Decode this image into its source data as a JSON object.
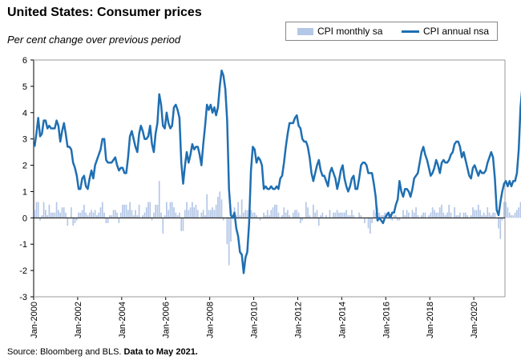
{
  "title": "United States: Consumer prices",
  "subtitle": "Per cent change over previous period",
  "source_text": "Source: Bloomberg and BLS.",
  "source_bold": "Data to May 2021.",
  "colors": {
    "monthly": "#b4c7e7",
    "annual": "#1f6fb2",
    "axis": "#000000"
  },
  "chart_data": {
    "type": "bar+line",
    "ylim": [
      -3,
      6
    ],
    "y_ticks": [
      "-3",
      "-2",
      "-1",
      "0",
      "1",
      "2",
      "3",
      "4",
      "5",
      "6"
    ],
    "x_start": "2000-01",
    "x_end": "2021-05",
    "x_ticks": [
      "Jan-2000",
      "Jan-2002",
      "Jan-2004",
      "Jan-2006",
      "Jan-2008",
      "Jan-2010",
      "Jan-2012",
      "Jan-2014",
      "Jan-2016",
      "Jan-2018",
      "Jan-2020"
    ],
    "legend_position": "top-right",
    "series": [
      {
        "name": "CPI monthly sa",
        "kind": "bar",
        "values": [
          0.3,
          0.6,
          0.6,
          -0.1,
          0.1,
          0.6,
          0.3,
          0.1,
          0.5,
          0.2,
          0.2,
          0.2,
          0.6,
          0.3,
          0.2,
          0.4,
          0.4,
          0.2,
          -0.3,
          0.0,
          0.4,
          -0.3,
          -0.2,
          -0.1,
          0.2,
          0.2,
          0.3,
          0.5,
          0.2,
          0.1,
          0.2,
          0.3,
          0.2,
          0.3,
          0.1,
          0.2,
          0.4,
          0.6,
          0.2,
          -0.2,
          -0.2,
          0.1,
          0.1,
          0.3,
          0.3,
          0.2,
          -0.2,
          0.2,
          0.5,
          0.5,
          0.5,
          0.3,
          0.6,
          0.3,
          0.1,
          0.3,
          0.1,
          0.5,
          0.0,
          0.1,
          0.2,
          0.4,
          0.6,
          0.6,
          -0.1,
          0.2,
          0.5,
          0.5,
          1.4,
          0.2,
          -0.6,
          0.1,
          0.6,
          0.3,
          0.6,
          0.6,
          0.4,
          0.2,
          0.1,
          0.2,
          -0.5,
          -0.5,
          0.3,
          0.6,
          0.3,
          0.4,
          0.6,
          0.4,
          0.5,
          0.3,
          0.0,
          0.2,
          0.3,
          0.1,
          0.9,
          0.3,
          0.3,
          0.4,
          0.3,
          0.5,
          0.8,
          1.0,
          0.7,
          -0.1,
          0.0,
          -1.0,
          -1.8,
          -0.9,
          0.0,
          0.4,
          0.1,
          0.6,
          0.1,
          0.7,
          0.2,
          0.3,
          0.3,
          0.3,
          0.3,
          0.2,
          0.2,
          0.1,
          0.0,
          -0.1,
          0.0,
          0.2,
          0.1,
          0.3,
          0.1,
          0.3,
          0.4,
          0.5,
          0.5,
          0.2,
          0.0,
          0.1,
          0.4,
          0.2,
          0.3,
          0.1,
          0.0,
          0.2,
          0.3,
          0.3,
          0.2,
          -0.2,
          -0.1,
          0.0,
          0.6,
          0.4,
          0.1,
          0.0,
          0.5,
          0.2,
          0.3,
          -0.3,
          0.1,
          0.2,
          0.0,
          0.1,
          0.0,
          0.3,
          0.0,
          0.2,
          0.2,
          0.3,
          0.2,
          0.2,
          0.2,
          0.2,
          0.3,
          0.1,
          0.1,
          0.3,
          0.1,
          0.0,
          0.0,
          0.2,
          0.1,
          0.0,
          -0.2,
          0.0,
          -0.4,
          -0.6,
          -0.2,
          0.3,
          0.2,
          0.4,
          0.2,
          0.1,
          0.1,
          0.2,
          0.2,
          0.1,
          0.1,
          -0.1,
          0.1,
          0.1,
          -0.1,
          -0.1,
          0.0,
          0.3,
          0.1,
          0.3,
          0.2,
          0.0,
          0.3,
          0.2,
          0.4,
          0.1,
          0.0,
          0.1,
          0.2,
          0.2,
          0.0,
          0.1,
          0.2,
          0.4,
          0.3,
          0.2,
          0.2,
          0.4,
          0.5,
          0.2,
          0.1,
          0.2,
          0.5,
          0.2,
          0.0,
          0.4,
          0.1,
          0.1,
          0.2,
          0.0,
          0.2,
          0.2,
          0.1,
          0.0,
          0.1,
          0.4,
          0.3,
          0.3,
          0.5,
          0.3,
          0.1,
          0.2,
          0.1,
          0.4,
          0.2,
          0.1,
          0.2,
          0.2,
          0.0,
          -0.4,
          -0.8,
          -0.1,
          0.6,
          0.6,
          0.4,
          0.2,
          0.1,
          0.1,
          0.2,
          0.3,
          0.4,
          0.6,
          0.8,
          0.6
        ],
        "x_start": "2000-01"
      },
      {
        "name": "CPI annual nsa",
        "kind": "line",
        "values": [
          2.7,
          3.2,
          3.8,
          3.1,
          3.2,
          3.7,
          3.7,
          3.4,
          3.5,
          3.4,
          3.4,
          3.4,
          3.7,
          3.5,
          2.9,
          3.3,
          3.6,
          3.2,
          2.7,
          2.7,
          2.6,
          2.1,
          1.9,
          1.6,
          1.1,
          1.1,
          1.5,
          1.6,
          1.2,
          1.1,
          1.5,
          1.8,
          1.5,
          2.0,
          2.2,
          2.4,
          2.6,
          3.0,
          3.0,
          2.2,
          2.1,
          2.1,
          2.1,
          2.2,
          2.3,
          2.0,
          1.8,
          1.9,
          1.9,
          1.7,
          1.7,
          2.3,
          3.1,
          3.3,
          3.0,
          2.7,
          2.5,
          3.2,
          3.5,
          3.3,
          3.0,
          3.0,
          3.1,
          3.5,
          2.8,
          2.5,
          3.2,
          3.6,
          4.7,
          4.3,
          3.5,
          3.4,
          4.0,
          3.6,
          3.4,
          3.5,
          4.2,
          4.3,
          4.1,
          3.8,
          2.1,
          1.3,
          2.0,
          2.5,
          2.1,
          2.4,
          2.8,
          2.6,
          2.7,
          2.7,
          2.4,
          2.0,
          2.8,
          3.5,
          4.3,
          4.1,
          4.3,
          4.0,
          4.2,
          3.9,
          4.2,
          5.0,
          5.6,
          5.4,
          4.9,
          3.7,
          1.1,
          0.1,
          0.0,
          0.2,
          -0.4,
          -0.7,
          -1.3,
          -1.4,
          -2.1,
          -1.5,
          -1.3,
          -0.2,
          1.8,
          2.7,
          2.6,
          2.1,
          2.3,
          2.2,
          2.0,
          1.1,
          1.2,
          1.1,
          1.1,
          1.2,
          1.1,
          1.1,
          1.2,
          1.1,
          1.5,
          1.6,
          2.1,
          2.7,
          3.2,
          3.6,
          3.6,
          3.6,
          3.8,
          3.9,
          3.5,
          3.4,
          3.0,
          2.9,
          2.9,
          2.7,
          2.3,
          1.7,
          1.4,
          1.7,
          2.0,
          2.2,
          1.8,
          1.6,
          1.6,
          1.4,
          1.2,
          1.7,
          1.9,
          1.7,
          1.5,
          1.1,
          1.4,
          1.8,
          2.0,
          1.5,
          1.2,
          1.0,
          1.2,
          1.5,
          1.6,
          1.1,
          1.1,
          1.5,
          2.0,
          2.1,
          2.1,
          2.0,
          1.7,
          1.7,
          1.7,
          1.3,
          0.8,
          -0.1,
          0.0,
          -0.1,
          -0.2,
          0.0,
          0.1,
          0.2,
          0.0,
          0.2,
          0.2,
          0.5,
          0.7,
          1.4,
          1.0,
          0.8,
          1.1,
          1.1,
          1.0,
          0.8,
          1.1,
          1.5,
          1.6,
          1.7,
          2.1,
          2.5,
          2.7,
          2.4,
          2.2,
          1.9,
          1.6,
          1.7,
          1.9,
          2.2,
          2.0,
          1.7,
          2.1,
          2.2,
          2.1,
          2.1,
          2.2,
          2.4,
          2.5,
          2.8,
          2.9,
          2.9,
          2.7,
          2.3,
          2.5,
          2.2,
          1.9,
          1.6,
          1.5,
          1.9,
          2.0,
          1.8,
          1.6,
          1.8,
          1.7,
          1.7,
          1.8,
          2.1,
          2.3,
          2.5,
          2.3,
          1.5,
          0.3,
          0.1,
          0.6,
          1.0,
          1.3,
          1.4,
          1.2,
          1.4,
          1.2,
          1.4,
          1.4,
          1.7,
          2.6,
          4.2,
          5.0
        ]
      }
    ]
  }
}
